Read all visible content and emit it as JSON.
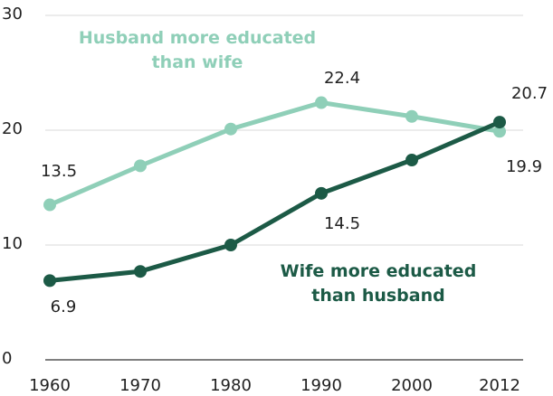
{
  "chart_data": {
    "type": "line",
    "x": [
      1960,
      1970,
      1980,
      1990,
      2000,
      2012
    ],
    "x_tick_labels": [
      "1960",
      "1970",
      "1980",
      "1990",
      "2000",
      "2012"
    ],
    "y_ticks": [
      0,
      10,
      20,
      30
    ],
    "y_tick_labels": [
      "0",
      "10",
      "20",
      "30"
    ],
    "ylim": [
      0,
      30
    ],
    "grid": true,
    "series": [
      {
        "key": "husband",
        "name": "Husband more educated than wife",
        "name_lines": [
          "Husband more educated",
          "than wife"
        ],
        "color": "#8fcfb8",
        "values": [
          13.5,
          16.9,
          20.1,
          22.4,
          21.2,
          19.9
        ],
        "labels": {
          "0": "13.5",
          "3": "22.4",
          "5": "19.9"
        }
      },
      {
        "key": "wife",
        "name": "Wife more educated than husband",
        "name_lines": [
          "Wife more educated",
          "than husband"
        ],
        "color": "#1c5a46",
        "values": [
          6.9,
          7.7,
          10.0,
          14.5,
          17.4,
          20.7
        ],
        "labels": {
          "0": "6.9",
          "3": "14.5",
          "5": "20.7"
        }
      }
    ]
  }
}
